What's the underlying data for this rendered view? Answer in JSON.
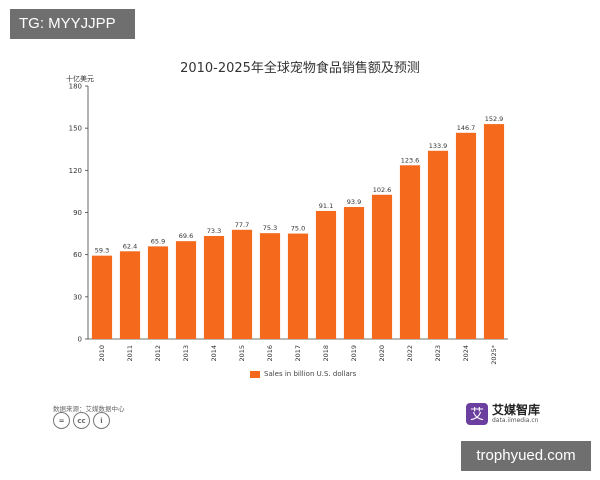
{
  "badge": {
    "text": "TG: MYYJJPP"
  },
  "watermark": {
    "text": "trophyued.com"
  },
  "source_text": "数据来源：艾媒数据中心",
  "brand": {
    "name": "艾媒智库",
    "url": "data.iimedia.cn",
    "logo_char": "艾",
    "logo_color": "#6b3fa0"
  },
  "license_icons": [
    {
      "name": "equals-icon",
      "glyph": "="
    },
    {
      "name": "cc-icon",
      "glyph": "cc"
    },
    {
      "name": "person-icon",
      "glyph": "i"
    }
  ],
  "chart_data": {
    "type": "bar",
    "title": "2010-2025年全球宠物食品销售额及预测",
    "unit_label": "十亿美元",
    "categories": [
      "2010",
      "2011",
      "2012",
      "2013",
      "2014",
      "2015",
      "2016",
      "2017",
      "2018",
      "2019",
      "2020",
      "2022",
      "2023",
      "2024",
      "2025*"
    ],
    "series": [
      {
        "name": "Sales in billion U.S. dollars",
        "values": [
          59.3,
          62.4,
          65.9,
          69.6,
          73.3,
          77.7,
          75.3,
          75.0,
          91.1,
          93.9,
          102.6,
          123.6,
          133.9,
          146.7,
          152.9
        ],
        "color": "#f5691c"
      }
    ],
    "ylim": [
      0,
      180
    ],
    "yticks": [
      0,
      30,
      60,
      90,
      120,
      150,
      180
    ],
    "grid": false,
    "legend_position": "bottom"
  }
}
